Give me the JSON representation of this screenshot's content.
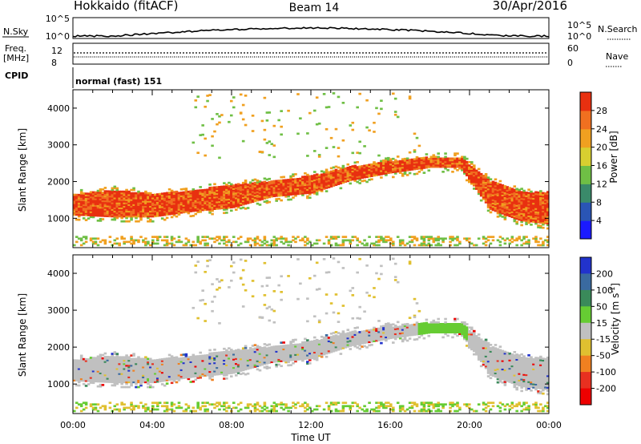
{
  "header": {
    "station": "Hokkaido (fitACF)",
    "beam": "Beam 14",
    "date": "30/Apr/2016"
  },
  "top_panels": {
    "nsky_label": "N.Sky",
    "nsky_ticks": [
      "10^5",
      "10^0"
    ],
    "nsearch_label": "N.Search",
    "nsearch_ticks": [
      "10^5",
      "10^0"
    ],
    "freq_label": "Freq.",
    "freq_unit": "[MHz]",
    "freq_ticks": [
      "12",
      "8"
    ],
    "nave_label": "Nave",
    "nave_ticks": [
      "60",
      "0"
    ],
    "cpid_label": "CPID",
    "cpid_text": "normal (fast) 151"
  },
  "chart_data": [
    {
      "type": "heatmap",
      "name": "power",
      "ylabel": "Slant Range [km]",
      "ylim": [
        200,
        4500
      ],
      "yticks": [
        "1000",
        "2000",
        "3000",
        "4000"
      ],
      "xlim": [
        0,
        24
      ],
      "xticks": [
        "00:00",
        "04:00",
        "08:00",
        "12:00",
        "16:00",
        "20:00",
        "00:00"
      ],
      "colorbar_label": "Power [dB]",
      "colorbar_ticks": [
        "4",
        "8",
        "12",
        "16",
        "20",
        "24",
        "28"
      ],
      "colorbar_range": [
        0,
        32
      ],
      "colors": [
        "#1a1aff",
        "#2a55b5",
        "#3a8a6a",
        "#6fbf45",
        "#d8cf30",
        "#f0a020",
        "#f07020",
        "#e83010"
      ],
      "echo_band": [
        {
          "t": 0,
          "lo": 1050,
          "hi": 1650
        },
        {
          "t": 2,
          "lo": 1000,
          "hi": 1750
        },
        {
          "t": 4,
          "lo": 1000,
          "hi": 1650
        },
        {
          "t": 6,
          "lo": 1150,
          "hi": 1750
        },
        {
          "t": 8,
          "lo": 1250,
          "hi": 1900
        },
        {
          "t": 10,
          "lo": 1550,
          "hi": 2000
        },
        {
          "t": 12,
          "lo": 1650,
          "hi": 2150
        },
        {
          "t": 14,
          "lo": 2000,
          "hi": 2400
        },
        {
          "t": 16,
          "lo": 2200,
          "hi": 2550
        },
        {
          "t": 18,
          "lo": 2350,
          "hi": 2650
        },
        {
          "t": 19.5,
          "lo": 2350,
          "hi": 2650
        },
        {
          "t": 21,
          "lo": 1200,
          "hi": 2000
        },
        {
          "t": 22.5,
          "lo": 900,
          "hi": 1700
        },
        {
          "t": 24,
          "lo": 800,
          "hi": 1700
        }
      ]
    },
    {
      "type": "heatmap",
      "name": "velocity",
      "ylabel": "Slant Range [km]",
      "ylim": [
        200,
        4500
      ],
      "yticks": [
        "1000",
        "2000",
        "3000",
        "4000"
      ],
      "xlim": [
        0,
        24
      ],
      "xticks": [
        "00:00",
        "04:00",
        "08:00",
        "12:00",
        "16:00",
        "20:00",
        "00:00"
      ],
      "xlabel": "Time UT",
      "colorbar_label": "Velocity [m s",
      "colorbar_label_sup": "-1",
      "colorbar_label_end": "]",
      "colorbar_ticks": [
        "200",
        "100",
        "50",
        "15",
        "-15",
        "-50",
        "-100",
        "-200"
      ],
      "colors": [
        "#2233cc",
        "#3a6aa0",
        "#3a8a5a",
        "#66cc33",
        "#c0c0c0",
        "#e0c030",
        "#f08020",
        "#e83020",
        "#ee0000"
      ]
    }
  ]
}
